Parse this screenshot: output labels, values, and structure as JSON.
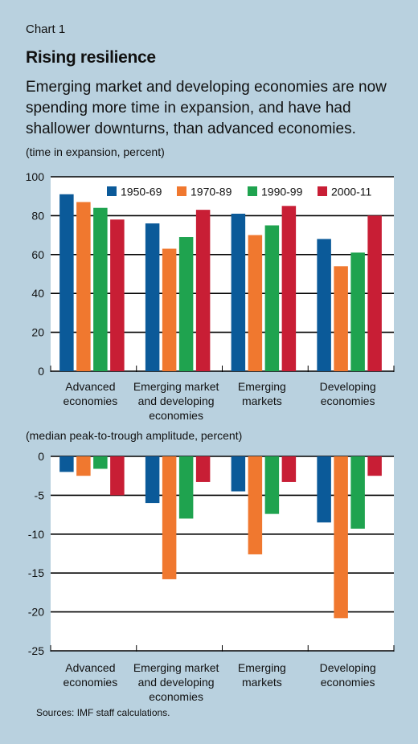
{
  "header": {
    "chart_label": "Chart 1",
    "title": "Rising resilience",
    "subtitle": "Emerging market and developing economies are now spending more time in expansion, and have had shallower downturns, than advanced economies."
  },
  "footer": {
    "sources": "Sources: IMF staff calculations."
  },
  "colors": {
    "background": "#b9d1df",
    "plot_background": "#ffffff",
    "series": [
      "#0b5a99",
      "#f0782f",
      "#1fa34f",
      "#c81e35"
    ]
  },
  "chart_data": [
    {
      "type": "bar",
      "title": "",
      "ylabel": "(time in expansion, percent)",
      "xlabel": "",
      "ylim": [
        0,
        100
      ],
      "yticks": [
        0,
        20,
        40,
        60,
        80,
        100
      ],
      "grid": true,
      "legend_position": "top-right",
      "categories": [
        [
          "Advanced",
          "economies"
        ],
        [
          "Emerging market",
          "and developing",
          "economies"
        ],
        [
          "Emerging",
          "markets"
        ],
        [
          "Developing",
          "economies"
        ]
      ],
      "series": [
        {
          "name": "1950-69",
          "values": [
            91,
            76,
            81,
            68
          ]
        },
        {
          "name": "1970-89",
          "values": [
            87,
            63,
            70,
            54
          ]
        },
        {
          "name": "1990-99",
          "values": [
            84,
            69,
            75,
            61
          ]
        },
        {
          "name": "2000-11",
          "values": [
            78,
            83,
            85,
            80
          ]
        }
      ]
    },
    {
      "type": "bar",
      "title": "",
      "ylabel": "(median peak-to-trough amplitude, percent)",
      "xlabel": "",
      "ylim": [
        -25,
        0
      ],
      "yticks": [
        0,
        -5,
        -10,
        -15,
        -20,
        -25
      ],
      "grid": true,
      "categories": [
        [
          "Advanced",
          "economies"
        ],
        [
          "Emerging market",
          "and developing",
          "economies"
        ],
        [
          "Emerging",
          "markets"
        ],
        [
          "Developing",
          "economies"
        ]
      ],
      "series": [
        {
          "name": "1950-69",
          "values": [
            -2.0,
            -6.0,
            -4.5,
            -8.5
          ]
        },
        {
          "name": "1970-89",
          "values": [
            -2.5,
            -15.8,
            -12.6,
            -20.8
          ]
        },
        {
          "name": "1990-99",
          "values": [
            -1.6,
            -8.0,
            -7.4,
            -9.3
          ]
        },
        {
          "name": "2000-11",
          "values": [
            -5.0,
            -3.3,
            -3.3,
            -2.5
          ]
        }
      ]
    }
  ]
}
